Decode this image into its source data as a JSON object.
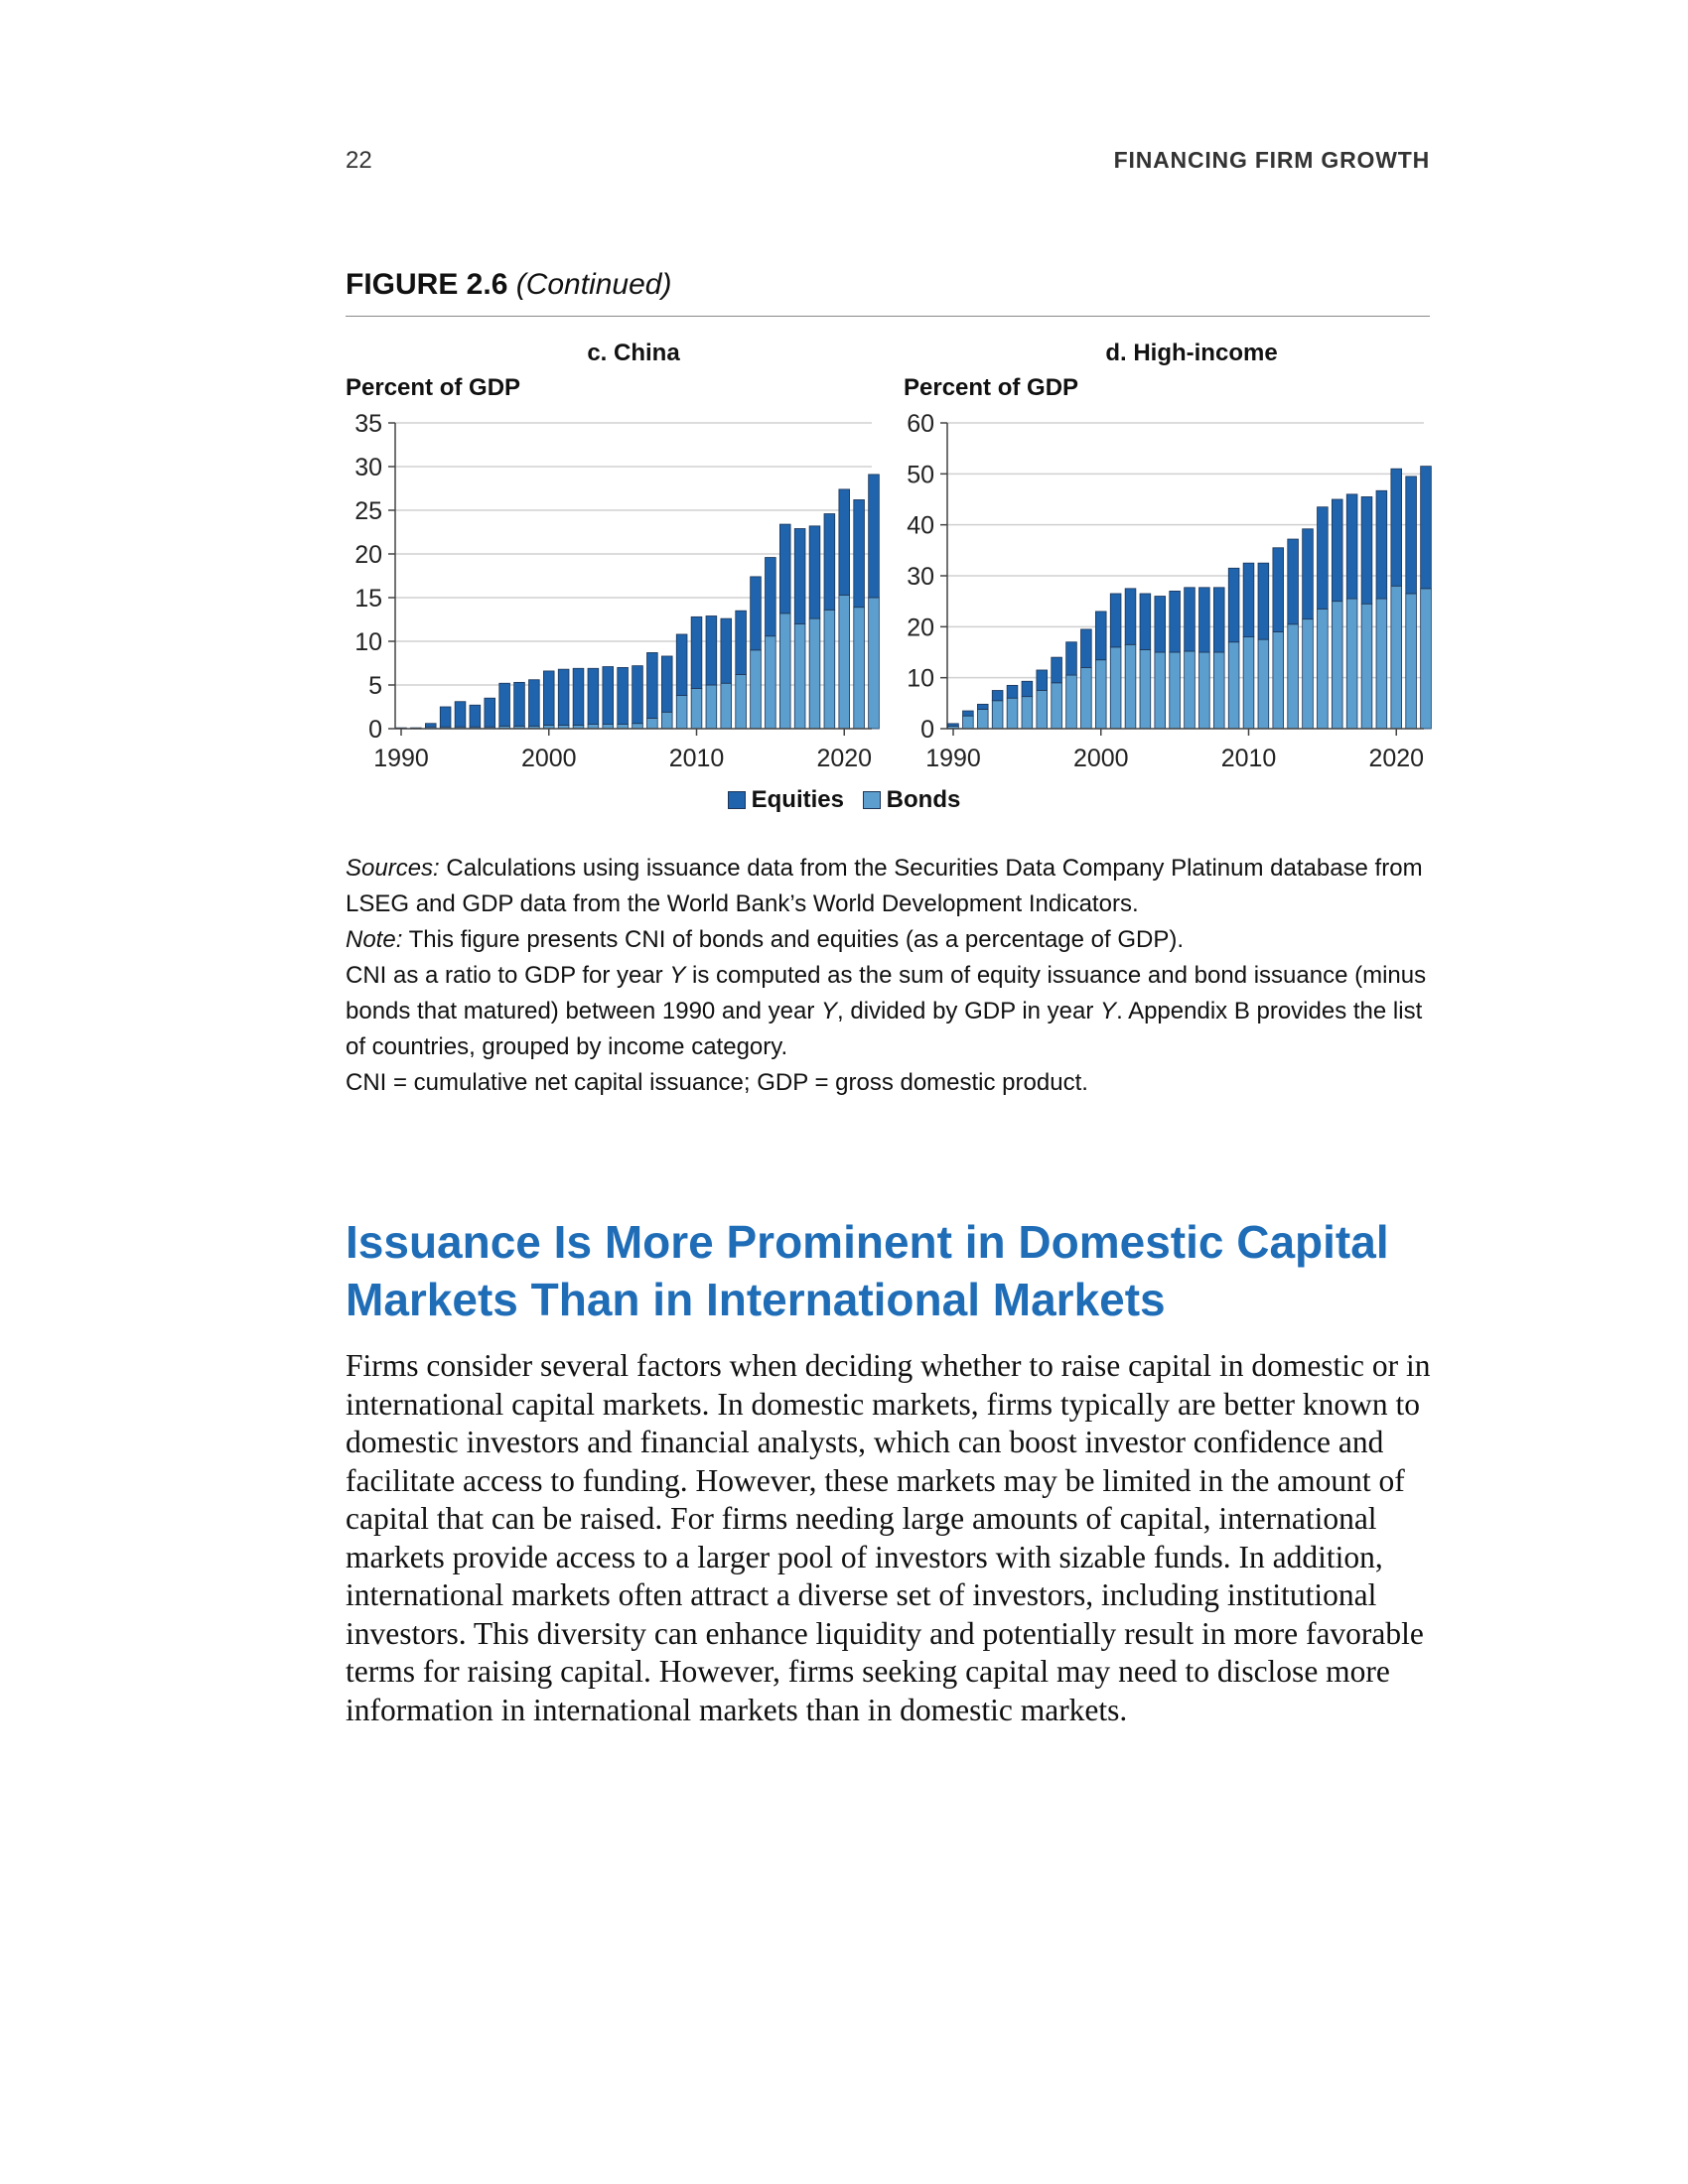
{
  "page": {
    "number": "22",
    "running_head": "FINANCING FIRM GROWTH"
  },
  "figure": {
    "label": "FIGURE 2.6",
    "continued": "(Continued)"
  },
  "colors": {
    "equities": "#1f64ac",
    "bonds": "#5c9fce",
    "heading": "#1f6db7",
    "grid": "#d0d0d0"
  },
  "legend": {
    "equities": "Equities",
    "bonds": "Bonds"
  },
  "chart_data": [
    {
      "type": "bar",
      "stacked": true,
      "title": "c. China",
      "ylabel": "Percent of GDP",
      "ylim": [
        0,
        35
      ],
      "yticks": [
        0,
        5,
        10,
        15,
        20,
        25,
        30,
        35
      ],
      "xticks": [
        1990,
        2000,
        2010,
        2020
      ],
      "grid": true,
      "x": [
        1990,
        1991,
        1992,
        1993,
        1994,
        1995,
        1996,
        1997,
        1998,
        1999,
        2000,
        2001,
        2002,
        2003,
        2004,
        2005,
        2006,
        2007,
        2008,
        2009,
        2010,
        2011,
        2012,
        2013,
        2014,
        2015,
        2016,
        2017,
        2018,
        2019,
        2020,
        2021,
        2022
      ],
      "series": [
        {
          "name": "Bonds",
          "values": [
            0.1,
            0.1,
            0.2,
            0.2,
            0.2,
            0.2,
            0.2,
            0.3,
            0.3,
            0.3,
            0.4,
            0.4,
            0.4,
            0.5,
            0.5,
            0.5,
            0.6,
            1.2,
            1.9,
            3.8,
            4.6,
            5.0,
            5.2,
            6.2,
            9.0,
            10.6,
            13.2,
            12.0,
            12.6,
            13.6,
            15.3,
            13.9,
            15.0
          ]
        },
        {
          "name": "Equities",
          "values": [
            0,
            0,
            0.4,
            2.3,
            2.9,
            2.5,
            3.3,
            4.9,
            5.0,
            5.3,
            6.2,
            6.4,
            6.5,
            6.4,
            6.6,
            6.5,
            6.6,
            7.5,
            6.4,
            7.0,
            8.2,
            7.9,
            7.4,
            7.3,
            8.4,
            9.0,
            10.2,
            10.9,
            10.6,
            11.0,
            12.1,
            12.3,
            14.1
          ]
        }
      ]
    },
    {
      "type": "bar",
      "stacked": true,
      "title": "d. High-income",
      "ylabel": "Percent of GDP",
      "ylim": [
        0,
        60
      ],
      "yticks": [
        0,
        10,
        20,
        30,
        40,
        50,
        60
      ],
      "xticks": [
        1990,
        2000,
        2010,
        2020
      ],
      "grid": true,
      "x": [
        1990,
        1991,
        1992,
        1993,
        1994,
        1995,
        1996,
        1997,
        1998,
        1999,
        2000,
        2001,
        2002,
        2003,
        2004,
        2005,
        2006,
        2007,
        2008,
        2009,
        2010,
        2011,
        2012,
        2013,
        2014,
        2015,
        2016,
        2017,
        2018,
        2019,
        2020,
        2021,
        2022
      ],
      "series": [
        {
          "name": "Bonds",
          "values": [
            0.5,
            2.5,
            3.8,
            5.5,
            6.0,
            6.3,
            7.5,
            9.0,
            10.5,
            12.0,
            13.5,
            16.0,
            16.5,
            15.5,
            15.0,
            15.0,
            15.2,
            15.0,
            15.0,
            17.0,
            18.0,
            17.5,
            19.0,
            20.5,
            21.5,
            23.5,
            25.0,
            25.5,
            24.5,
            25.5,
            28.0,
            26.5,
            27.5
          ]
        },
        {
          "name": "Equities",
          "values": [
            0.5,
            1.0,
            1.0,
            2.0,
            2.5,
            3.0,
            4.0,
            5.0,
            6.5,
            7.5,
            9.5,
            10.5,
            11.0,
            11.0,
            11.0,
            12.0,
            12.5,
            12.7,
            12.7,
            14.5,
            14.5,
            15.0,
            16.5,
            16.7,
            17.7,
            20.0,
            20.0,
            20.5,
            21.0,
            21.2,
            23.0,
            23.0,
            24.0
          ]
        }
      ]
    }
  ],
  "notes": {
    "sources_label": "Sources:",
    "sources_text": " Calculations using issuance data from the Securities Data Company Platinum database from LSEG and GDP data from the World Bank’s World Development Indicators.",
    "note_label": "Note:",
    "note_text": " This figure presents CNI of bonds and equities (as a percentage of GDP).",
    "line2_a": "CNI as a ratio to GDP for year ",
    "var_y": "Y",
    "line2_b": " is computed as the sum of equity issuance and bond issuance (minus bonds that matured) between 1990 and year ",
    "line2_c": ", divided by GDP in year ",
    "line2_d": ". Appendix B provides the list of countries, grouped by income category.",
    "abbrev": "CNI = cumulative net capital issuance; GDP = gross domestic product."
  },
  "section": {
    "heading": "Issuance Is More Prominent in Domestic Capital Markets Than in International Markets",
    "body": "Firms consider several factors when deciding whether to raise capital in domestic or in international capital markets. In domestic markets, firms typically are better known to domestic investors and financial analysts, which can boost investor confidence and facilitate access to funding. However, these markets may be limited in the amount of capital that can be raised. For firms needing large amounts of capital, international markets provide access to a larger pool of investors with sizable funds. In addition, international markets often attract a diverse set of investors, including institutional investors. This diversity can enhance liquidity and potentially result in more favorable terms for raising capital. However, firms seeking capital may need to disclose more information in international markets than in domestic markets."
  }
}
